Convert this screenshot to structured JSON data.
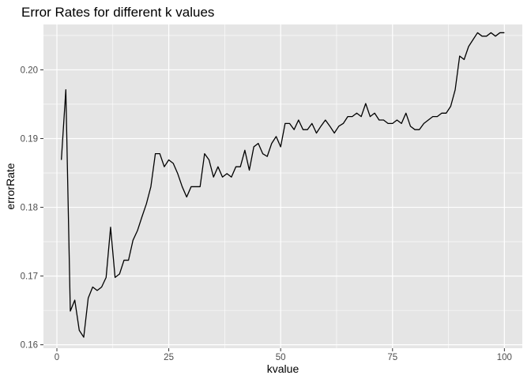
{
  "chart_data": {
    "type": "line",
    "title": "Error Rates for different k values",
    "xlabel": "kvalue",
    "ylabel": "errorRate",
    "xlim": [
      -3,
      104
    ],
    "ylim": [
      0.1595,
      0.2066
    ],
    "x_ticks": [
      0,
      25,
      50,
      75,
      100
    ],
    "x_tick_labels": [
      "0",
      "25",
      "50",
      "75",
      "100"
    ],
    "y_ticks": [
      0.16,
      0.17,
      0.18,
      0.19,
      0.2
    ],
    "y_tick_labels": [
      "0.16",
      "0.17",
      "0.18",
      "0.19",
      "0.20"
    ],
    "grid": true,
    "panel_background": "#e5e5e5",
    "grid_color": "#ffffff",
    "line_color": "#000000",
    "series": [
      {
        "x": [
          1,
          2,
          3,
          4,
          5,
          6,
          7,
          8,
          9,
          10,
          11,
          12,
          13,
          14,
          15,
          16,
          17,
          18,
          19,
          20,
          21,
          22,
          23,
          24,
          25,
          26,
          27,
          28,
          29,
          30,
          31,
          32,
          33,
          34,
          35,
          36,
          37,
          38,
          39,
          40,
          41,
          42,
          43,
          44,
          45,
          46,
          47,
          48,
          49,
          50,
          51,
          52,
          53,
          54,
          55,
          56,
          57,
          58,
          59,
          60,
          61,
          62,
          63,
          64,
          65,
          66,
          67,
          68,
          69,
          70,
          71,
          72,
          73,
          74,
          75,
          76,
          77,
          78,
          79,
          80,
          81,
          82,
          83,
          84,
          85,
          86,
          87,
          88,
          89,
          90,
          91,
          92,
          93,
          94,
          95,
          96,
          97,
          98,
          99,
          100
        ],
        "values": [
          0.1869,
          0.1971,
          0.1649,
          0.1665,
          0.1621,
          0.1611,
          0.1668,
          0.1684,
          0.1679,
          0.1684,
          0.1698,
          0.1771,
          0.1698,
          0.1703,
          0.1723,
          0.1723,
          0.1752,
          0.1766,
          0.1786,
          0.1805,
          0.183,
          0.1878,
          0.1878,
          0.1859,
          0.1869,
          0.1864,
          0.1849,
          0.183,
          0.1815,
          0.183,
          0.183,
          0.183,
          0.1878,
          0.1869,
          0.1844,
          0.1859,
          0.1844,
          0.1849,
          0.1844,
          0.1859,
          0.1859,
          0.1883,
          0.1854,
          0.1888,
          0.1893,
          0.1878,
          0.1874,
          0.1893,
          0.1903,
          0.1888,
          0.1922,
          0.1922,
          0.1913,
          0.1927,
          0.1913,
          0.1913,
          0.1922,
          0.1908,
          0.1918,
          0.1927,
          0.1918,
          0.1908,
          0.1918,
          0.1922,
          0.1932,
          0.1932,
          0.1937,
          0.1932,
          0.1951,
          0.1932,
          0.1937,
          0.1927,
          0.1927,
          0.1922,
          0.1922,
          0.1927,
          0.1922,
          0.1937,
          0.1918,
          0.1913,
          0.1913,
          0.1922,
          0.1927,
          0.1932,
          0.1932,
          0.1937,
          0.1937,
          0.1947,
          0.1971,
          0.202,
          0.2015,
          0.2034,
          0.2044,
          0.2054,
          0.2049,
          0.2049,
          0.2054,
          0.2049,
          0.2054,
          0.2054
        ]
      }
    ]
  }
}
